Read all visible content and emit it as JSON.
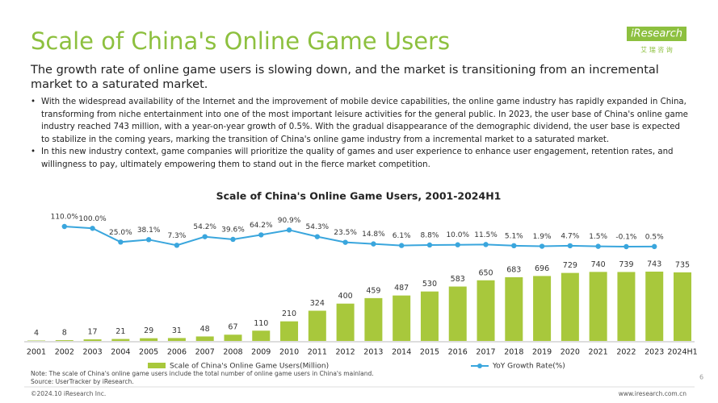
{
  "header": {
    "title": "Scale of China's Online Game Users",
    "subtitle": "The growth rate of online game users is slowing down, and the market is transitioning from an incremental market to a saturated market."
  },
  "logo": {
    "name": "iResearch",
    "tagline": "艾 瑞 咨 询"
  },
  "bullets": [
    "With the widespread availability of the Internet and the improvement of mobile device capabilities, the online game industry has rapidly expanded in China, transforming from niche entertainment into one of the most important leisure activities for the general public. In 2023, the user base of China's online game industry reached 743 million, with a year-on-year growth of 0.5%. With the gradual disappearance of the demographic dividend, the user base is expected to stabilize in the coming years, marking the transition of China's online game industry from a incremental market to a saturated market.",
    "In this new industry context, game companies will prioritize the quality of games and user experience to enhance user engagement, retention rates, and willingness to pay, ultimately empowering them to stand out in the fierce market competition."
  ],
  "chart_data": {
    "type": "combo",
    "title": "Scale of China's Online Game Users, 2001-2024H1",
    "categories": [
      "2001",
      "2002",
      "2003",
      "2004",
      "2005",
      "2006",
      "2007",
      "2008",
      "2009",
      "2010",
      "2011",
      "2012",
      "2013",
      "2014",
      "2015",
      "2016",
      "2017",
      "2018",
      "2019",
      "2020",
      "2021",
      "2022",
      "2023",
      "2024H1"
    ],
    "series": [
      {
        "name": "Scale of China's Online Game Users(Million)",
        "type": "bar",
        "color": "#a8c83c",
        "values": [
          4,
          8,
          17,
          21,
          29,
          31,
          48,
          67,
          110,
          210,
          324,
          400,
          459,
          487,
          530,
          583,
          650,
          683,
          696,
          729,
          740,
          739,
          743,
          735
        ]
      },
      {
        "name": "YoY Growth Rate(%)",
        "type": "line",
        "color": "#3aa6dd",
        "values": [
          null,
          110.0,
          100.0,
          25.0,
          38.1,
          7.3,
          54.2,
          39.6,
          64.2,
          90.9,
          54.3,
          23.5,
          14.8,
          6.1,
          8.8,
          10.0,
          11.5,
          5.1,
          1.9,
          4.7,
          1.5,
          -0.1,
          0.5,
          null
        ],
        "value_labels": [
          null,
          "110.0%",
          "100.0%",
          "25.0%",
          "38.1%",
          "7.3%",
          "54.2%",
          "39.6%",
          "64.2%",
          "90.9%",
          "54.3%",
          "23.5%",
          "14.8%",
          "6.1%",
          "8.8%",
          "10.0%",
          "11.5%",
          "5.1%",
          "1.9%",
          "4.7%",
          "1.5%",
          "-0.1%",
          "0.5%",
          null
        ]
      }
    ]
  },
  "footer": {
    "note": "Note: The scale of China's online game users include the total number of online game users in China's mainland.",
    "source": "Source: UserTracker by iResearch.",
    "copyright": "©2024.10 iResearch Inc.",
    "url": "www.iresearch.com.cn",
    "page": "6"
  }
}
